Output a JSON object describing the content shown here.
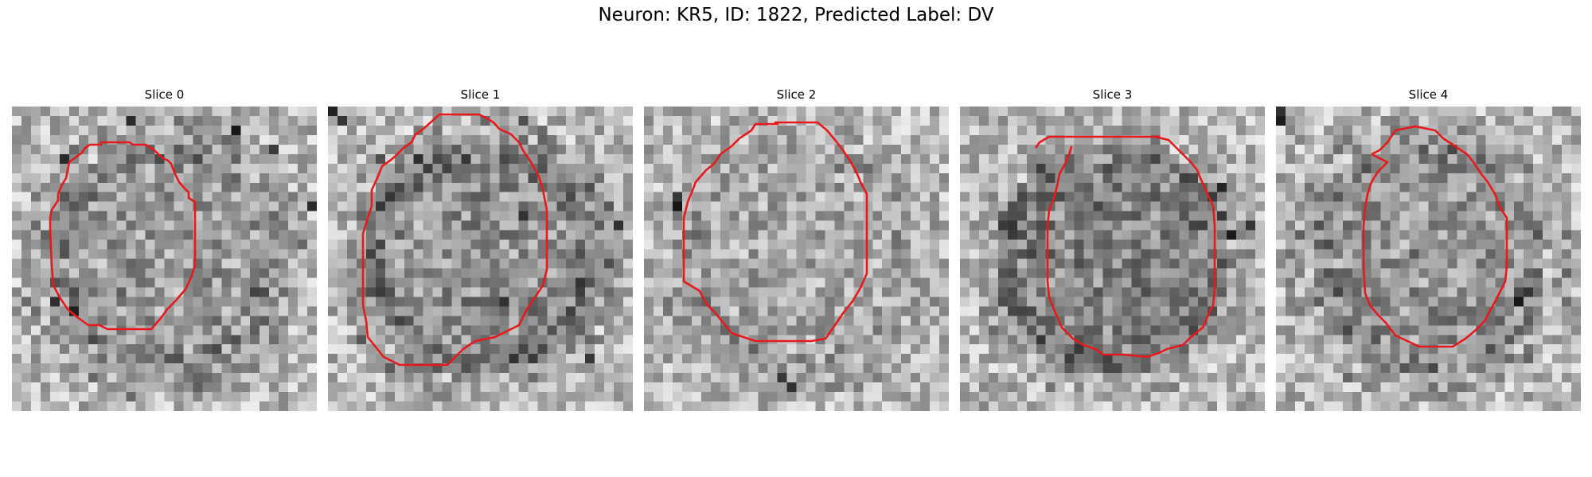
{
  "figure": {
    "title": "Neuron: KR5, ID: 1822, Predicted Label: DV"
  },
  "colors": {
    "contour": "#e8191b",
    "colormap": "gray"
  },
  "slices": [
    {
      "title": "Slice 0",
      "seed": 11,
      "dark_ring": 0.55,
      "interior": 0.35,
      "dark_blobs": [
        [
          1,
          12
        ],
        [
          2,
          23
        ],
        [
          5,
          5
        ],
        [
          4,
          27
        ],
        [
          20,
          4
        ],
        [
          21,
          6
        ],
        [
          10,
          31
        ]
      ]
    },
    {
      "title": "Slice 1",
      "seed": 23,
      "dark_ring": 0.75,
      "interior": 0.45,
      "dark_blobs": [
        [
          0,
          0
        ],
        [
          1,
          1
        ],
        [
          10,
          5
        ],
        [
          11,
          20
        ],
        [
          12,
          30
        ],
        [
          20,
          18
        ],
        [
          26,
          27
        ]
      ]
    },
    {
      "title": "Slice 2",
      "seed": 37,
      "dark_ring": 0.25,
      "interior": 0.2,
      "dark_blobs": [
        [
          9,
          3
        ],
        [
          10,
          3
        ],
        [
          28,
          14
        ],
        [
          29,
          15
        ]
      ]
    },
    {
      "title": "Slice 3",
      "seed": 53,
      "dark_ring": 0.4,
      "interior": 0.65,
      "dark_blobs": [
        [
          8,
          27
        ],
        [
          13,
          28
        ],
        [
          13,
          5
        ],
        [
          12,
          30
        ],
        [
          25,
          12
        ]
      ]
    },
    {
      "title": "Slice 4",
      "seed": 71,
      "dark_ring": 0.5,
      "interior": 0.4,
      "dark_blobs": [
        [
          0,
          0
        ],
        [
          1,
          0
        ],
        [
          19,
          26
        ],
        [
          20,
          25
        ]
      ]
    }
  ]
}
